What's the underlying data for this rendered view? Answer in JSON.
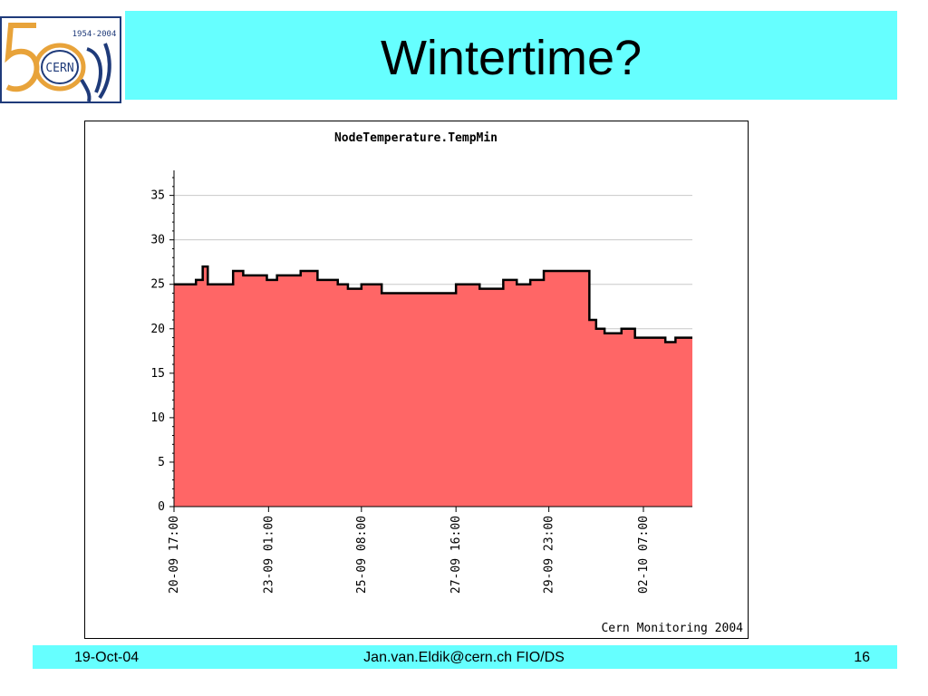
{
  "slide": {
    "title": "Wintertime?"
  },
  "logo": {
    "years": "1954-2004",
    "name": "CERN"
  },
  "footer": {
    "date": "19-Oct-04",
    "center": "Jan.van.Eldik@cern.ch FIO/DS",
    "page": "16"
  },
  "colors": {
    "band": "#66ffff",
    "area_fill": "#ff6666",
    "area_edge": "#000000",
    "grid": "#c8c8c8"
  },
  "chart_data": {
    "type": "area",
    "title": "NodeTemperature.TempMin",
    "credit": "Cern Monitoring 2004",
    "ylim": [
      0,
      37
    ],
    "yticks": [
      0,
      5,
      10,
      15,
      20,
      25,
      30,
      35
    ],
    "grid": true,
    "xticks": [
      {
        "label": "20-09 17:00",
        "date": "2004-09-20 17:00"
      },
      {
        "label": "23-09 01:00",
        "date": "2004-09-23 01:00"
      },
      {
        "label": "25-09 08:00",
        "date": "2004-09-25 08:00"
      },
      {
        "label": "27-09 16:00",
        "date": "2004-09-27 16:00"
      },
      {
        "label": "29-09 23:00",
        "date": "2004-09-29 23:00"
      },
      {
        "label": "02-10 07:00",
        "date": "2004-10-02 07:00"
      }
    ],
    "xlim": [
      "2004-09-20 17:00",
      "2004-10-03 12:00"
    ],
    "series": [
      {
        "points": [
          [
            "2004-09-20 17:00",
            25
          ],
          [
            "2004-09-21 02:00",
            25
          ],
          [
            "2004-09-21 06:00",
            25.5
          ],
          [
            "2004-09-21 10:00",
            27
          ],
          [
            "2004-09-21 13:00",
            25
          ],
          [
            "2004-09-21 20:00",
            25
          ],
          [
            "2004-09-22 04:00",
            26.5
          ],
          [
            "2004-09-22 10:00",
            26
          ],
          [
            "2004-09-23 00:00",
            25.5
          ],
          [
            "2004-09-23 06:00",
            26
          ],
          [
            "2004-09-23 14:00",
            26
          ],
          [
            "2004-09-23 20:00",
            26.5
          ],
          [
            "2004-09-24 06:00",
            25.5
          ],
          [
            "2004-09-24 18:00",
            25
          ],
          [
            "2004-09-25 00:00",
            24.5
          ],
          [
            "2004-09-25 08:00",
            25
          ],
          [
            "2004-09-25 14:00",
            25
          ],
          [
            "2004-09-25 20:00",
            24
          ],
          [
            "2004-09-26 12:00",
            24
          ],
          [
            "2004-09-27 06:00",
            24
          ],
          [
            "2004-09-27 14:00",
            24
          ],
          [
            "2004-09-27 16:00",
            25
          ],
          [
            "2004-09-28 01:00",
            25
          ],
          [
            "2004-09-28 06:00",
            24.5
          ],
          [
            "2004-09-28 14:00",
            24.5
          ],
          [
            "2004-09-28 20:00",
            25.5
          ],
          [
            "2004-09-29 04:00",
            25
          ],
          [
            "2004-09-29 12:00",
            25.5
          ],
          [
            "2004-09-29 20:00",
            26.5
          ],
          [
            "2004-09-30 06:00",
            26.5
          ],
          [
            "2004-09-30 20:00",
            26.5
          ],
          [
            "2004-09-30 23:00",
            21
          ],
          [
            "2004-10-01 03:00",
            20
          ],
          [
            "2004-10-01 08:00",
            19.5
          ],
          [
            "2004-10-01 18:00",
            20
          ],
          [
            "2004-10-02 02:00",
            19
          ],
          [
            "2004-10-02 07:00",
            19
          ],
          [
            "2004-10-02 14:00",
            19
          ],
          [
            "2004-10-02 20:00",
            18.5
          ],
          [
            "2004-10-03 02:00",
            19
          ],
          [
            "2004-10-03 08:00",
            19
          ],
          [
            "2004-10-03 12:00",
            19
          ]
        ]
      }
    ]
  }
}
